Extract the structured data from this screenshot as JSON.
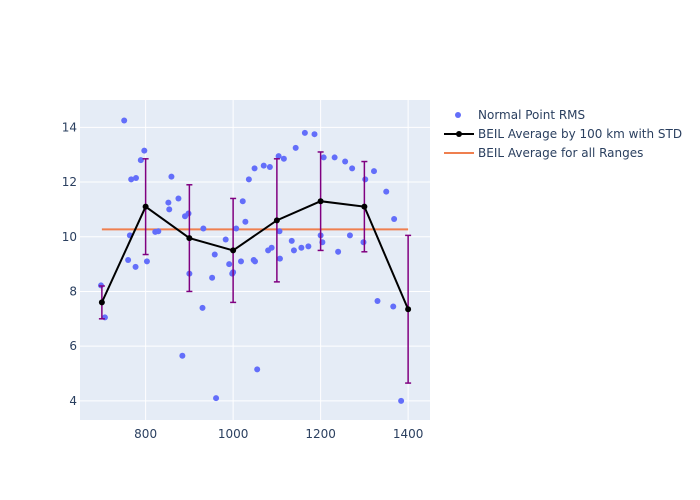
{
  "chart_data": {
    "type": "scatter",
    "title": "",
    "xlabel": "",
    "ylabel": "",
    "xlim": [
      650,
      1450
    ],
    "ylim": [
      3.3,
      15.0
    ],
    "x_ticks": [
      800,
      1000,
      1200,
      1400
    ],
    "y_ticks": [
      4,
      6,
      8,
      10,
      12,
      14
    ],
    "grid": true,
    "legend_position": "right",
    "plot_background": "#E5ECF6",
    "colors": {
      "scatter": "#636EFA",
      "average_line": "#000000",
      "error_bar": "#800080",
      "overall_average": "#EF7F4F"
    },
    "series": [
      {
        "name": "Normal Point RMS",
        "kind": "markers",
        "points": [
          [
            698,
            8.22
          ],
          [
            707,
            7.05
          ],
          [
            751,
            14.25
          ],
          [
            760,
            9.15
          ],
          [
            764,
            10.05
          ],
          [
            767,
            12.1
          ],
          [
            777,
            8.9
          ],
          [
            778,
            12.15
          ],
          [
            789,
            12.8
          ],
          [
            797,
            13.15
          ],
          [
            803,
            9.1
          ],
          [
            822,
            10.18
          ],
          [
            829,
            10.2
          ],
          [
            852,
            11.25
          ],
          [
            854,
            11.0
          ],
          [
            859,
            12.2
          ],
          [
            875,
            11.4
          ],
          [
            884,
            5.65
          ],
          [
            890,
            10.75
          ],
          [
            898,
            10.85
          ],
          [
            900,
            8.65
          ],
          [
            930,
            7.4
          ],
          [
            932,
            10.3
          ],
          [
            952,
            8.5
          ],
          [
            958,
            9.35
          ],
          [
            961,
            4.1
          ],
          [
            983,
            9.9
          ],
          [
            991,
            9.0
          ],
          [
            998,
            8.65
          ],
          [
            1000,
            8.7
          ],
          [
            1007,
            10.3
          ],
          [
            1018,
            9.1
          ],
          [
            1022,
            11.3
          ],
          [
            1028,
            10.55
          ],
          [
            1036,
            12.1
          ],
          [
            1047,
            9.15
          ],
          [
            1049,
            12.5
          ],
          [
            1050,
            9.1
          ],
          [
            1055,
            5.15
          ],
          [
            1070,
            12.6
          ],
          [
            1080,
            9.5
          ],
          [
            1084,
            12.55
          ],
          [
            1088,
            9.6
          ],
          [
            1104,
            12.95
          ],
          [
            1106,
            10.2
          ],
          [
            1107,
            9.2
          ],
          [
            1116,
            12.85
          ],
          [
            1134,
            9.85
          ],
          [
            1139,
            9.5
          ],
          [
            1143,
            13.25
          ],
          [
            1156,
            9.6
          ],
          [
            1164,
            13.8
          ],
          [
            1172,
            9.65
          ],
          [
            1186,
            13.75
          ],
          [
            1200,
            10.05
          ],
          [
            1204,
            9.8
          ],
          [
            1207,
            12.9
          ],
          [
            1232,
            12.9
          ],
          [
            1240,
            9.45
          ],
          [
            1256,
            12.75
          ],
          [
            1267,
            10.05
          ],
          [
            1272,
            12.5
          ],
          [
            1298,
            9.8
          ],
          [
            1302,
            12.1
          ],
          [
            1322,
            12.4
          ],
          [
            1330,
            7.65
          ],
          [
            1350,
            11.65
          ],
          [
            1366,
            7.45
          ],
          [
            1368,
            10.65
          ],
          [
            1384,
            4.0
          ]
        ]
      },
      {
        "name": "BEIL Average by 100 km with STD",
        "kind": "line+markers+errorbars",
        "x": [
          700,
          800,
          900,
          1000,
          1100,
          1200,
          1300,
          1400
        ],
        "y": [
          7.6,
          11.1,
          9.95,
          9.5,
          10.6,
          11.3,
          11.1,
          7.35
        ],
        "error": [
          0.6,
          1.75,
          1.95,
          1.9,
          2.25,
          1.8,
          1.65,
          2.7
        ]
      },
      {
        "name": "BEIL Average for all Ranges",
        "kind": "line",
        "x": [
          700,
          1400
        ],
        "y": [
          10.27,
          10.27
        ]
      }
    ]
  }
}
